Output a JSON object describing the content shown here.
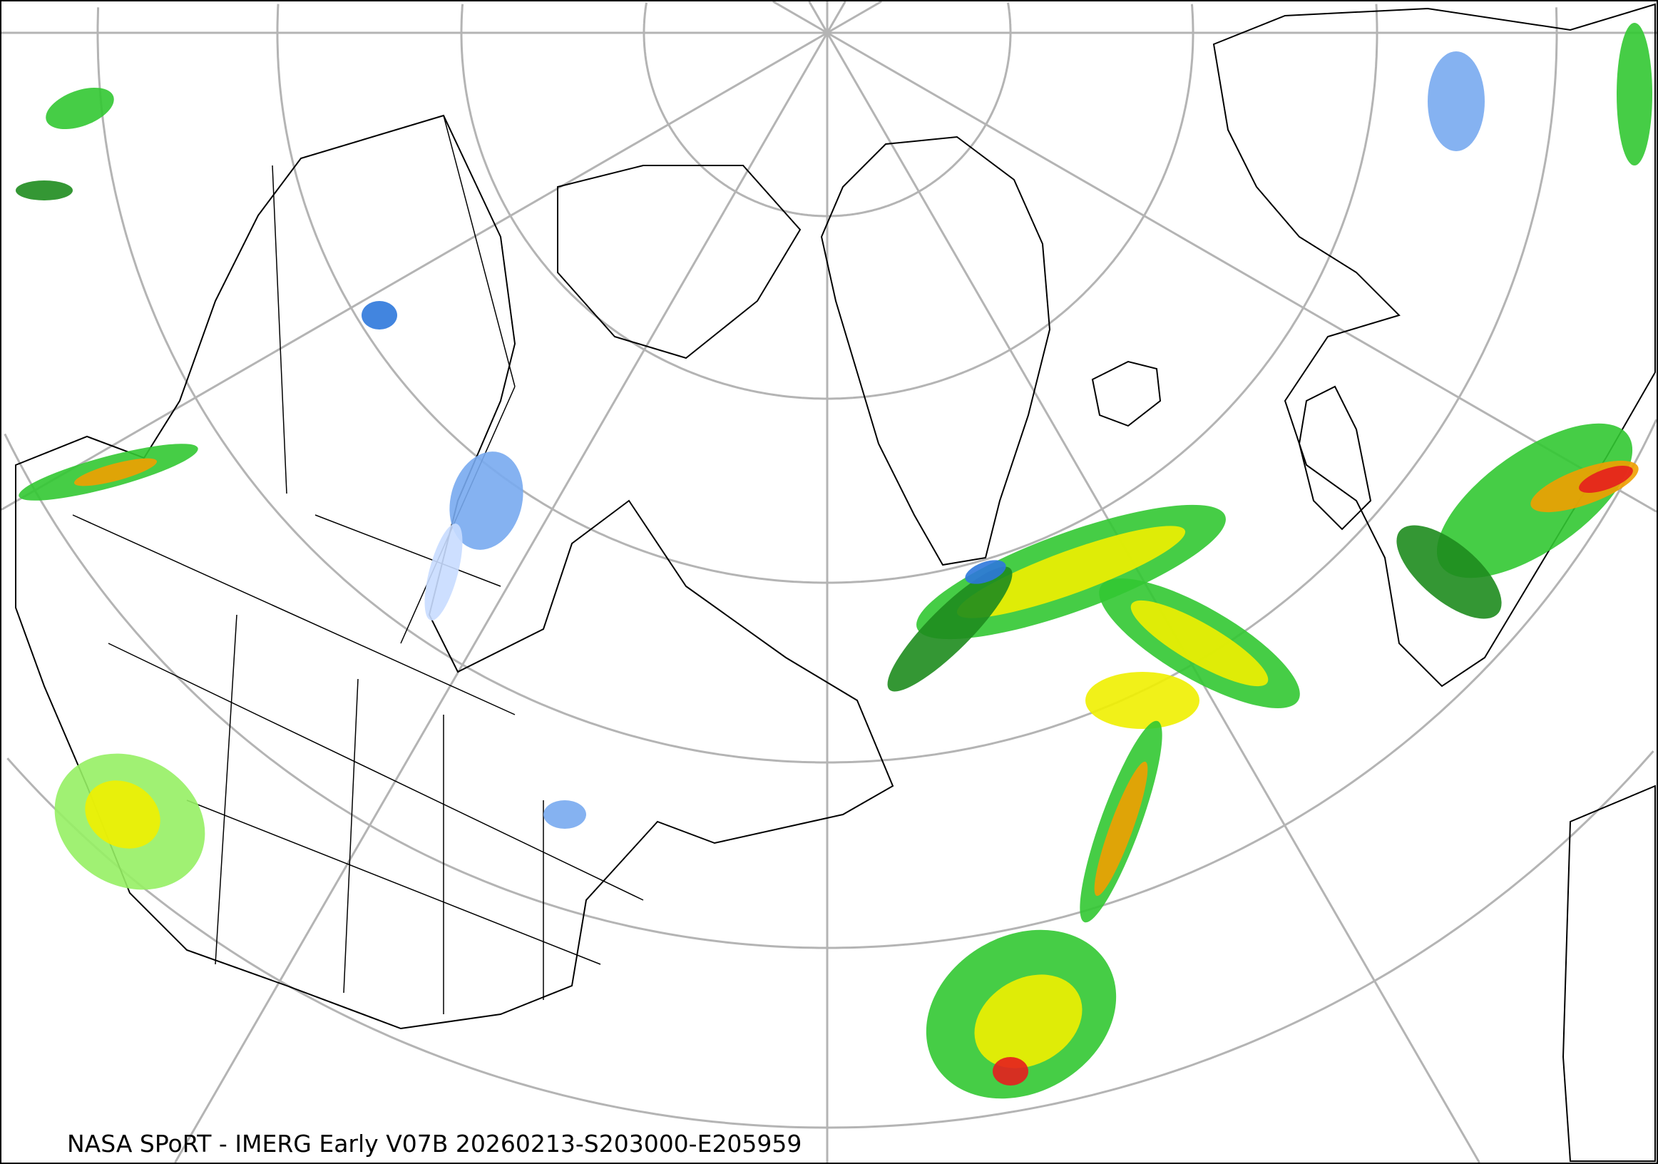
{
  "caption": "NASA SPoRT - IMERG Early V07B 20260213-S203000-E205959",
  "colors": {
    "graticule": "#b4b4b4",
    "coastline": "#000000",
    "snow_light": "#c8dcff",
    "snow_mid": "#78aaf0",
    "snow_heavy": "#2d78dc",
    "rain_dark_green": "#1e8c1e",
    "rain_green": "#32c832",
    "rain_light_green": "#96f064",
    "rain_yellow": "#f0f000",
    "rain_orange": "#f0a000",
    "rain_red": "#e61e1e"
  }
}
